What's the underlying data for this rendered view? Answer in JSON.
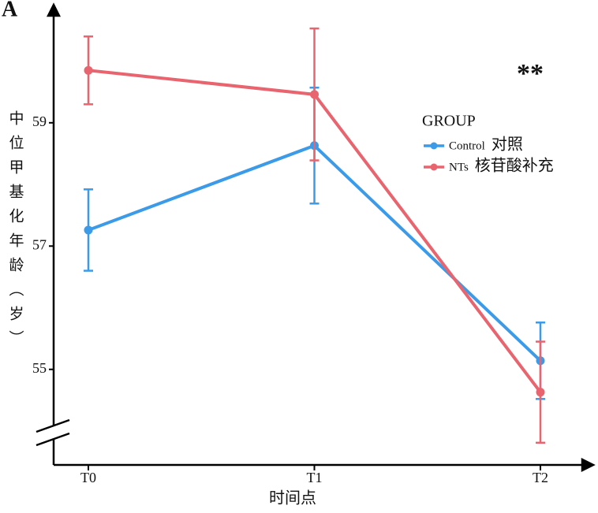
{
  "chart_data": {
    "type": "line",
    "panel_label": "A",
    "annotation": "**",
    "xlabel": "时间点",
    "ylabel": "中位甲基化年龄（岁）",
    "categories": [
      "T0",
      "T1",
      "T2"
    ],
    "ylim": [
      53.45,
      60.8
    ],
    "yticks": [
      55,
      57,
      59
    ],
    "legend_title": "GROUP",
    "series": [
      {
        "name": "Control",
        "label": "对照",
        "color": "#3b9be8",
        "values": [
          57.26,
          58.63,
          55.14
        ],
        "errors": [
          0.66,
          0.94,
          0.62
        ]
      },
      {
        "name": "NTs",
        "label": "核苷酸补充",
        "color": "#e8646f",
        "values": [
          59.85,
          59.46,
          54.63
        ],
        "errors": [
          0.55,
          1.07,
          0.82
        ]
      }
    ]
  }
}
